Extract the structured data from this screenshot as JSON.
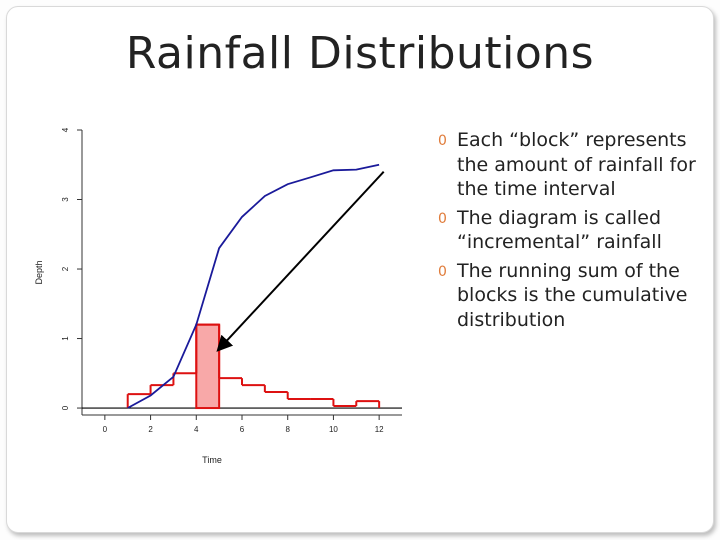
{
  "slide": {
    "title": "Rainfall Distributions",
    "bullet_marker": "0",
    "bullets": [
      "Each “block” represents the amount of rainfall for the time interval",
      "The diagram is called “incremental” rainfall",
      "The running sum of the blocks is the cumulative distribution"
    ]
  },
  "chart_data": {
    "type": "bar",
    "xlabel": "Time",
    "ylabel": "Depth",
    "xlim": [
      -1,
      13
    ],
    "ylim": [
      -0.1,
      4
    ],
    "xticks": [
      "0",
      "2",
      "4",
      "6",
      "8",
      "10",
      "12"
    ],
    "yticks": [
      "0",
      "1",
      "2",
      "3",
      "4"
    ],
    "grid": false,
    "colors": {
      "blocks": "#dd1111",
      "highlight_fill": "#f8a8a8",
      "cumulative": "#1a1a9a",
      "arrow": "#000000"
    },
    "series": [
      {
        "kind": "incremental",
        "bins": [
          {
            "x0": 1,
            "x1": 2,
            "y": 0.2
          },
          {
            "x0": 2,
            "x1": 3,
            "y": 0.33
          },
          {
            "x0": 3,
            "x1": 4,
            "y": 0.5
          },
          {
            "x0": 4,
            "x1": 5,
            "y": 1.2
          },
          {
            "x0": 5,
            "x1": 6,
            "y": 0.43
          },
          {
            "x0": 6,
            "x1": 7,
            "y": 0.33
          },
          {
            "x0": 7,
            "x1": 8,
            "y": 0.23
          },
          {
            "x0": 8,
            "x1": 9,
            "y": 0.13
          },
          {
            "x0": 9,
            "x1": 10,
            "y": 0.13
          },
          {
            "x0": 10,
            "x1": 11,
            "y": 0.03
          },
          {
            "x0": 11,
            "x1": 12,
            "y": 0.1
          }
        ],
        "highlight_index": 3
      },
      {
        "kind": "cumulative",
        "points": [
          [
            1,
            0
          ],
          [
            2,
            0.18
          ],
          [
            3,
            0.45
          ],
          [
            4,
            1.2
          ],
          [
            5,
            2.3
          ],
          [
            6,
            2.75
          ],
          [
            7,
            3.05
          ],
          [
            8,
            3.22
          ],
          [
            9,
            3.32
          ],
          [
            10,
            3.42
          ],
          [
            11,
            3.43
          ],
          [
            12,
            3.5
          ]
        ]
      }
    ],
    "annotations": [
      {
        "type": "arrow",
        "from": [
          12.2,
          3.4
        ],
        "to": [
          5.0,
          0.85
        ]
      }
    ]
  }
}
